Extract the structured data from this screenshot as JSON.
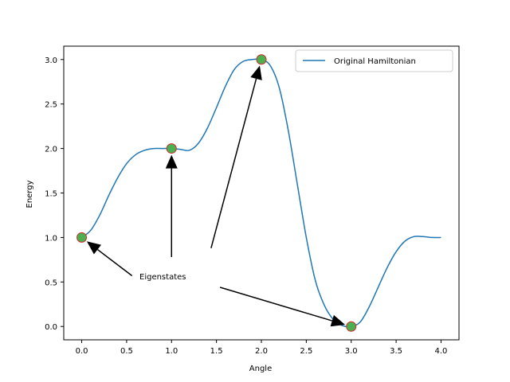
{
  "chart_data": {
    "type": "line",
    "xlabel": "Angle",
    "ylabel": "Energy",
    "xlim": [
      -0.2,
      4.2
    ],
    "ylim": [
      -0.15,
      3.15
    ],
    "xticks": [
      0.0,
      0.5,
      1.0,
      1.5,
      2.0,
      2.5,
      3.0,
      3.5,
      4.0
    ],
    "yticks": [
      0.0,
      0.5,
      1.0,
      1.5,
      2.0,
      2.5,
      3.0
    ],
    "xtick_labels": [
      "0.0",
      "0.5",
      "1.0",
      "1.5",
      "2.0",
      "2.5",
      "3.0",
      "3.5",
      "4.0"
    ],
    "ytick_labels": [
      "0.0",
      "0.5",
      "1.0",
      "1.5",
      "2.0",
      "2.5",
      "3.0"
    ],
    "series": [
      {
        "name": "Original Hamiltonian",
        "color": "#1f77b4",
        "x": [
          0.0,
          0.1,
          0.2,
          0.3,
          0.4,
          0.5,
          0.6,
          0.7,
          0.8,
          0.9,
          1.0,
          1.1,
          1.2,
          1.3,
          1.4,
          1.5,
          1.6,
          1.7,
          1.8,
          1.9,
          2.0,
          2.1,
          2.2,
          2.3,
          2.4,
          2.5,
          2.6,
          2.7,
          2.8,
          2.9,
          3.0,
          3.1,
          3.2,
          3.3,
          3.4,
          3.5,
          3.6,
          3.7,
          3.8,
          3.9,
          4.0
        ],
        "y": [
          1.0,
          1.08,
          1.25,
          1.47,
          1.67,
          1.83,
          1.93,
          1.98,
          2.0,
          2.0,
          2.0,
          1.99,
          1.98,
          2.06,
          2.23,
          2.46,
          2.7,
          2.89,
          2.98,
          3.0,
          3.0,
          2.93,
          2.68,
          2.2,
          1.6,
          1.0,
          0.52,
          0.24,
          0.08,
          0.01,
          0.0,
          0.05,
          0.22,
          0.44,
          0.66,
          0.84,
          0.96,
          1.01,
          1.01,
          1.0,
          1.0
        ]
      }
    ],
    "eigenstates": {
      "x": [
        0.0,
        1.0,
        2.0,
        3.0
      ],
      "y": [
        1.0,
        2.0,
        3.0,
        0.0
      ],
      "fill": "#4caf50",
      "edge": "#d62728"
    },
    "annotation": {
      "text": "Eigenstates",
      "text_anchor": [
        0.64,
        0.57
      ],
      "arrows": [
        {
          "from": [
            0.56,
            0.57
          ],
          "to": [
            0.0,
            1.0
          ]
        },
        {
          "from": [
            1.0,
            0.78
          ],
          "to": [
            1.0,
            2.0
          ]
        },
        {
          "from": [
            1.44,
            0.88
          ],
          "to": [
            2.0,
            3.0
          ]
        },
        {
          "from": [
            1.54,
            0.44
          ],
          "to": [
            3.0,
            0.0
          ]
        }
      ]
    },
    "legend": "top-right",
    "grid": false
  }
}
